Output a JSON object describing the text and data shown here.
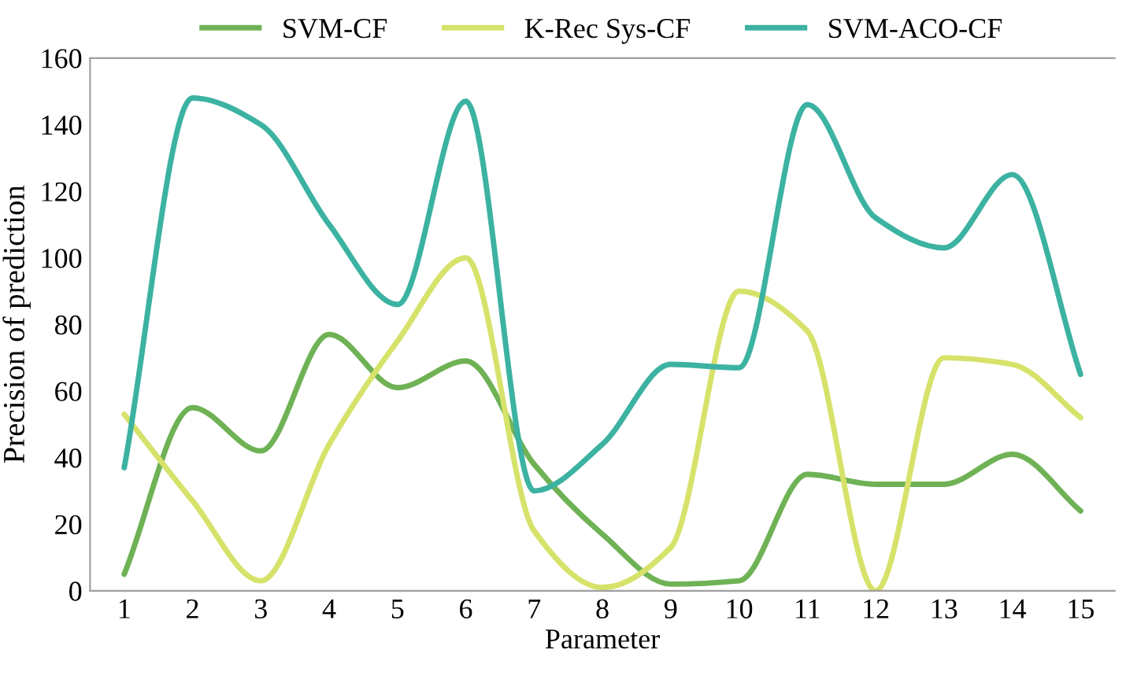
{
  "chart_data": {
    "type": "line",
    "xlabel": "Parameter",
    "ylabel": "Precision of prediction",
    "categories": [
      "1",
      "2",
      "3",
      "4",
      "5",
      "6",
      "7",
      "8",
      "9",
      "10",
      "11",
      "12",
      "13",
      "14",
      "15"
    ],
    "series": [
      {
        "name": "SVM-CF",
        "color": "#6fb255",
        "values": [
          5,
          55,
          42,
          77,
          61,
          69,
          38,
          17,
          2,
          3,
          35,
          32,
          32,
          41,
          24
        ]
      },
      {
        "name": "K-Rec Sys-CF",
        "color": "#d6e26a",
        "values": [
          53,
          27,
          3,
          44,
          75,
          100,
          18,
          1,
          13,
          90,
          78,
          0,
          70,
          68,
          52
        ]
      },
      {
        "name": "SVM-ACO-CF",
        "color": "#3cb2a2",
        "values": [
          37,
          148,
          140,
          110,
          86,
          147,
          30,
          44,
          68,
          67,
          146,
          112,
          103,
          125,
          65
        ]
      }
    ],
    "ylim": [
      0,
      160
    ],
    "yticks": [
      0,
      20,
      40,
      60,
      80,
      100,
      120,
      140,
      160
    ],
    "grid": false,
    "legend": "top",
    "marker": "none",
    "line_style": "solid"
  }
}
